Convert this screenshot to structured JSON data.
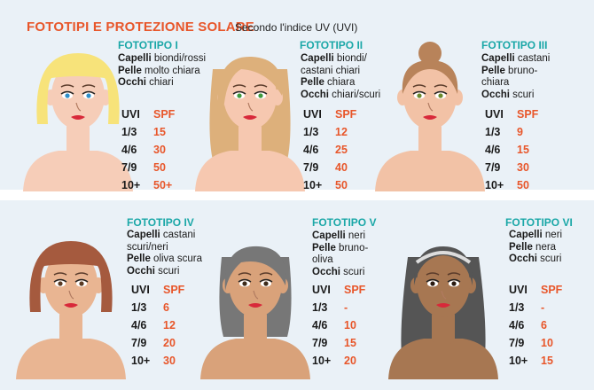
{
  "title": "FOTOTIPI E PROTEZIONE SOLARE",
  "subtitle": "Secondo l'indice UV (UVI)",
  "table_headers": {
    "uvi": "UVI",
    "spf": "SPF"
  },
  "colors": {
    "title": "#e8562a",
    "phototype_title": "#1aa7a7",
    "spf": "#e8562a",
    "band": "#eaf1f7"
  },
  "phototypes": [
    {
      "name": "FOTOTIPO I",
      "lines": [
        [
          "Capelli",
          " biondi/rossi"
        ],
        [
          "Pelle",
          " molto chiara"
        ],
        [
          "Occhi",
          " chiari"
        ]
      ],
      "rows": [
        [
          "1/3",
          "15"
        ],
        [
          "4/6",
          "30"
        ],
        [
          "7/9",
          "50"
        ],
        [
          "10+",
          "50+"
        ]
      ]
    },
    {
      "name": "FOTOTIPO II",
      "lines": [
        [
          "Capelli",
          " biondi/"
        ],
        [
          "",
          "castani chiari"
        ],
        [
          "Pelle",
          " chiara"
        ],
        [
          "Occhi",
          " chiari/scuri"
        ]
      ],
      "rows": [
        [
          "1/3",
          "12"
        ],
        [
          "4/6",
          "25"
        ],
        [
          "7/9",
          "40"
        ],
        [
          "10+",
          "50"
        ]
      ]
    },
    {
      "name": "FOTOTIPO III",
      "lines": [
        [
          "Capelli",
          " castani"
        ],
        [
          "Pelle",
          " bruno-"
        ],
        [
          "",
          "chiara"
        ],
        [
          "Occhi",
          " scuri"
        ]
      ],
      "rows": [
        [
          "1/3",
          "9"
        ],
        [
          "4/6",
          "15"
        ],
        [
          "7/9",
          "30"
        ],
        [
          "10+",
          "50"
        ]
      ]
    },
    {
      "name": "FOTOTIPO IV",
      "lines": [
        [
          "Capelli",
          " castani"
        ],
        [
          "",
          "scuri/neri"
        ],
        [
          "Pelle",
          " oliva scura"
        ],
        [
          "Occhi",
          " scuri"
        ]
      ],
      "rows": [
        [
          "1/3",
          "6"
        ],
        [
          "4/6",
          "12"
        ],
        [
          "7/9",
          "20"
        ],
        [
          "10+",
          "30"
        ]
      ]
    },
    {
      "name": "FOTOTIPO V",
      "lines": [
        [
          "Capelli",
          " neri"
        ],
        [
          "Pelle",
          " bruno-"
        ],
        [
          "",
          "oliva"
        ],
        [
          "Occhi",
          " scuri"
        ]
      ],
      "rows": [
        [
          "1/3",
          "-"
        ],
        [
          "4/6",
          "10"
        ],
        [
          "7/9",
          "15"
        ],
        [
          "10+",
          "20"
        ]
      ]
    },
    {
      "name": "FOTOTIPO VI",
      "lines": [
        [
          "Capelli",
          " neri"
        ],
        [
          "Pelle",
          " nera"
        ],
        [
          "Occhi",
          " scuri"
        ]
      ],
      "rows": [
        [
          "1/3",
          "-"
        ],
        [
          "4/6",
          "6"
        ],
        [
          "7/9",
          "10"
        ],
        [
          "10+",
          "15"
        ]
      ]
    }
  ]
}
